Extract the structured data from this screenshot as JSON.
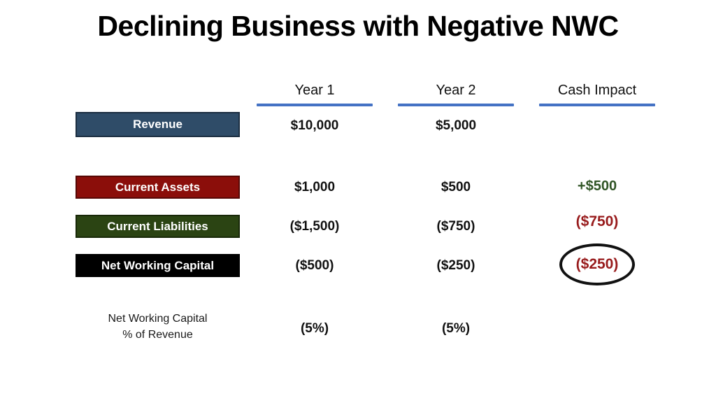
{
  "slide": {
    "title": "Declining Business with Negative NWC"
  },
  "table": {
    "column_headers": [
      {
        "label": "Year 1"
      },
      {
        "label": "Year 2"
      },
      {
        "label": "Cash Impact"
      }
    ],
    "rows": [
      {
        "label": "Revenue",
        "box_fill": "#2F4C68",
        "box_border": "#1C2E41",
        "year1": "$10,000",
        "year2": "$5,000",
        "cash_impact": ""
      },
      {
        "label": "Current Assets",
        "box_fill": "#8B0E0A",
        "box_border": "#550705",
        "year1": "$1,000",
        "year2": "$500",
        "cash_impact": "+$500"
      },
      {
        "label": "Current Liabilities",
        "box_fill": "#2B4413",
        "box_border": "#182808",
        "year1": "($1,500)",
        "year2": "($750)",
        "cash_impact": "($750)"
      },
      {
        "label": "Net Working Capital",
        "box_fill": "#000000",
        "box_border": "#000000",
        "year1": "($500)",
        "year2": "($250)",
        "cash_impact": "($250)"
      },
      {
        "label": "Net Working Capital\n% of Revenue",
        "year1": "(5%)",
        "year2": "(5%)",
        "cash_impact": ""
      }
    ]
  },
  "colors": {
    "header_underline": "#4472C4",
    "positive_value": "#305425",
    "negative_value": "#981B1C",
    "text": "#111111",
    "background": "#FFFFFF",
    "circle_stroke": "#111111"
  },
  "annotations": {
    "circled_value": "($250)",
    "circle_shape": "ellipse"
  },
  "chart_data": {
    "type": "table",
    "title": "Declining Business with Negative NWC",
    "columns": [
      "",
      "Year 1",
      "Year 2",
      "Cash Impact"
    ],
    "rows": [
      [
        "Revenue",
        "$10,000",
        "$5,000",
        ""
      ],
      [
        "Current Assets",
        "$1,000",
        "$500",
        "+$500"
      ],
      [
        "Current Liabilities",
        "($1,500)",
        "($750)",
        "($750)"
      ],
      [
        "Net Working Capital",
        "($500)",
        "($250)",
        "($250)"
      ],
      [
        "Net Working Capital % of Revenue",
        "(5%)",
        "(5%)",
        ""
      ]
    ]
  }
}
